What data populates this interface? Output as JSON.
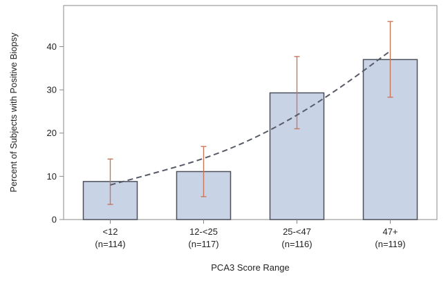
{
  "chart_data": {
    "type": "bar",
    "title": "",
    "xlabel": "PCA3 Score Range",
    "ylabel": "Percent of Subjects with Positive Biopsy",
    "categories": [
      {
        "label": "<12",
        "n": "(n=114)"
      },
      {
        "label": "12-<25",
        "n": "(n=117)"
      },
      {
        "label": "25-<47",
        "n": "(n=116)"
      },
      {
        "label": "47+",
        "n": "(n=119)"
      }
    ],
    "values": [
      8.8,
      11.1,
      29.3,
      37.0
    ],
    "error_low": [
      3.5,
      5.3,
      21.0,
      28.3
    ],
    "error_high": [
      14.0,
      16.9,
      37.7,
      45.8
    ],
    "trend": [
      {
        "x": 0,
        "y": 8.0
      },
      {
        "x": 0.5,
        "y": 10.9
      },
      {
        "x": 1,
        "y": 14.0
      },
      {
        "x": 1.5,
        "y": 18.3
      },
      {
        "x": 2,
        "y": 24.0
      },
      {
        "x": 2.5,
        "y": 31.0
      },
      {
        "x": 3,
        "y": 39.0
      }
    ],
    "ylim": [
      0,
      49.5
    ],
    "yticks": [
      0,
      10,
      20,
      30,
      40
    ],
    "grid": false,
    "legend": "none",
    "colors": {
      "bar_fill": "#c9d3e6",
      "bar_stroke": "#4a4f5a",
      "error_bar": "#c8765a",
      "trend_line": "#555a66",
      "axis": "#888888"
    }
  }
}
